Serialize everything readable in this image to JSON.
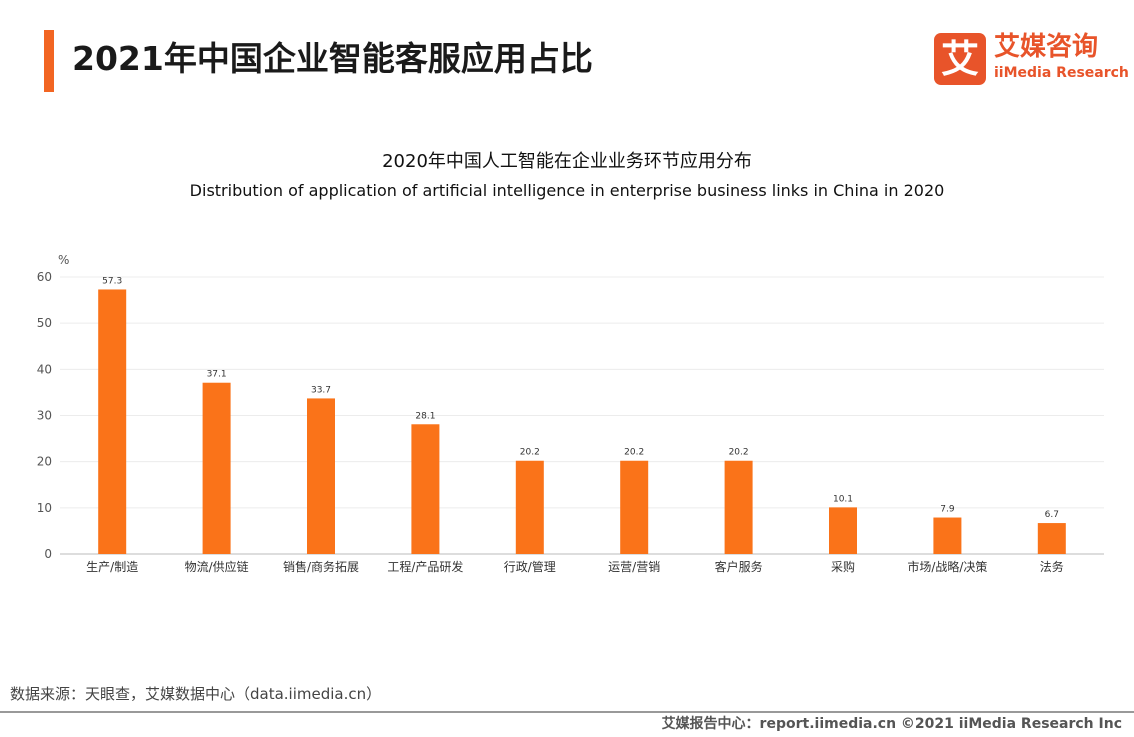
{
  "header": {
    "title": "2021年中国企业智能客服应用占比",
    "accent_color": "#f26522"
  },
  "logo": {
    "mark": "艾",
    "name_cn": "艾媒咨询",
    "name_en": "iiMedia Research",
    "color": "#e8542a"
  },
  "chart_data": {
    "type": "bar",
    "title": "2020年中国人工智能在企业业务环节应用分布",
    "subtitle": "Distribution of application of artificial intelligence in enterprise business links in China in 2020",
    "ylabel": "%",
    "ylim": [
      0,
      60
    ],
    "yticks": [
      0,
      10,
      20,
      30,
      40,
      50,
      60
    ],
    "grid": true,
    "bar_color": "#fa7319",
    "categories": [
      "生产/制造",
      "物流/供应链",
      "销售/商务拓展",
      "工程/产品研发",
      "行政/管理",
      "运营/营销",
      "客户服务",
      "采购",
      "市场/战略/决策",
      "法务"
    ],
    "values": [
      57.3,
      37.1,
      33.7,
      28.1,
      20.2,
      20.2,
      20.2,
      10.1,
      7.9,
      6.7
    ]
  },
  "footer": {
    "source": "数据来源：天眼查，艾媒数据中心（data.iimedia.cn）",
    "credit": "艾媒报告中心：report.iimedia.cn ©2021 iiMedia Research Inc"
  }
}
